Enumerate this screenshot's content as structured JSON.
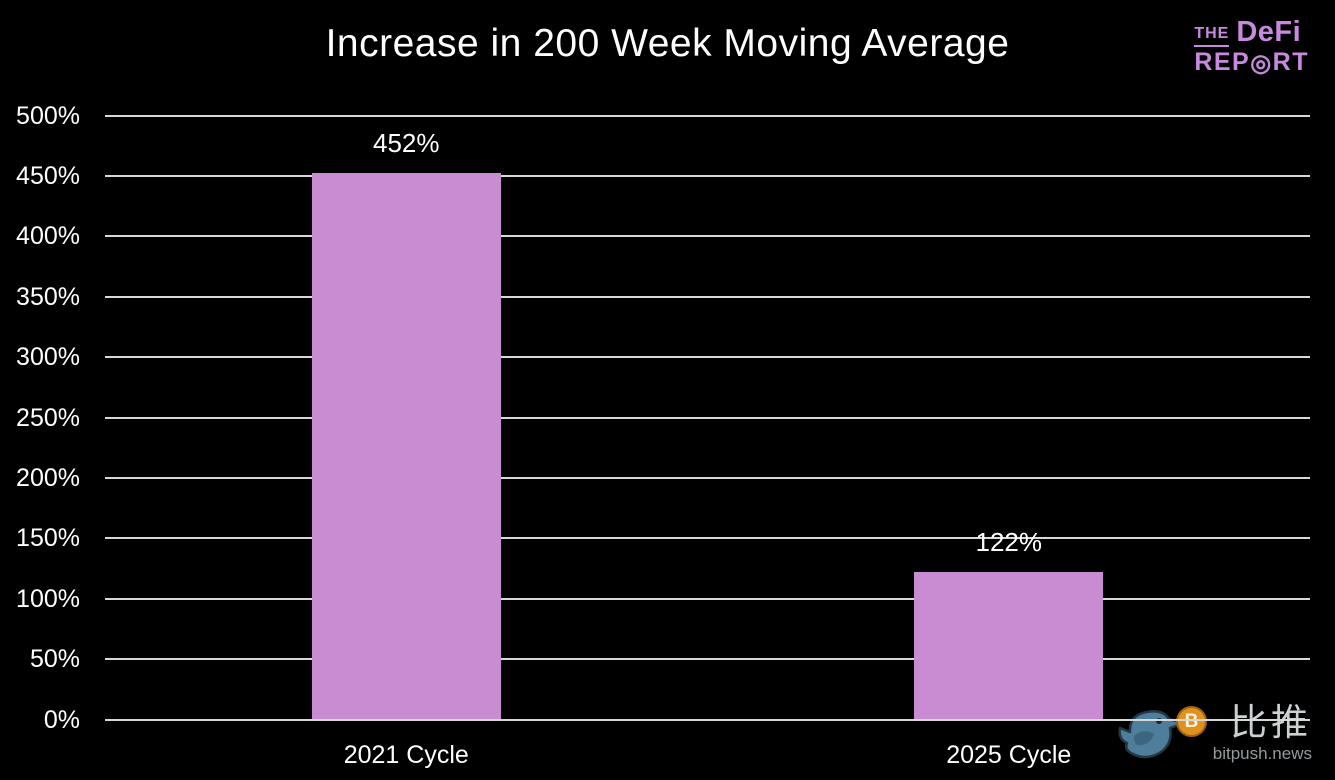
{
  "title": "Increase in 200 Week Moving Average",
  "logo": {
    "the": "THE",
    "defi": "DeFi",
    "report_prefix": "REP",
    "target_glyph": "◎",
    "report_suffix": "RT",
    "color": "#c88ade"
  },
  "watermark": {
    "brand_cn": "比推",
    "site": "bitpush.news",
    "coin_glyph": "B"
  },
  "chart_data": {
    "type": "bar",
    "title": "Increase in 200 Week Moving Average",
    "categories": [
      "2021 Cycle",
      "2025 Cycle"
    ],
    "values": [
      452,
      122
    ],
    "value_labels": [
      "452%",
      "122%"
    ],
    "xlabel": "",
    "ylabel": "",
    "ylim": [
      0,
      500
    ],
    "ytick_step": 50,
    "ytick_suffix": "%",
    "grid": true,
    "legend": false,
    "bar_color": "#c98bd1",
    "gridline_color": "#d8d8d8",
    "background": "#000000",
    "text_color": "#ffffff"
  }
}
